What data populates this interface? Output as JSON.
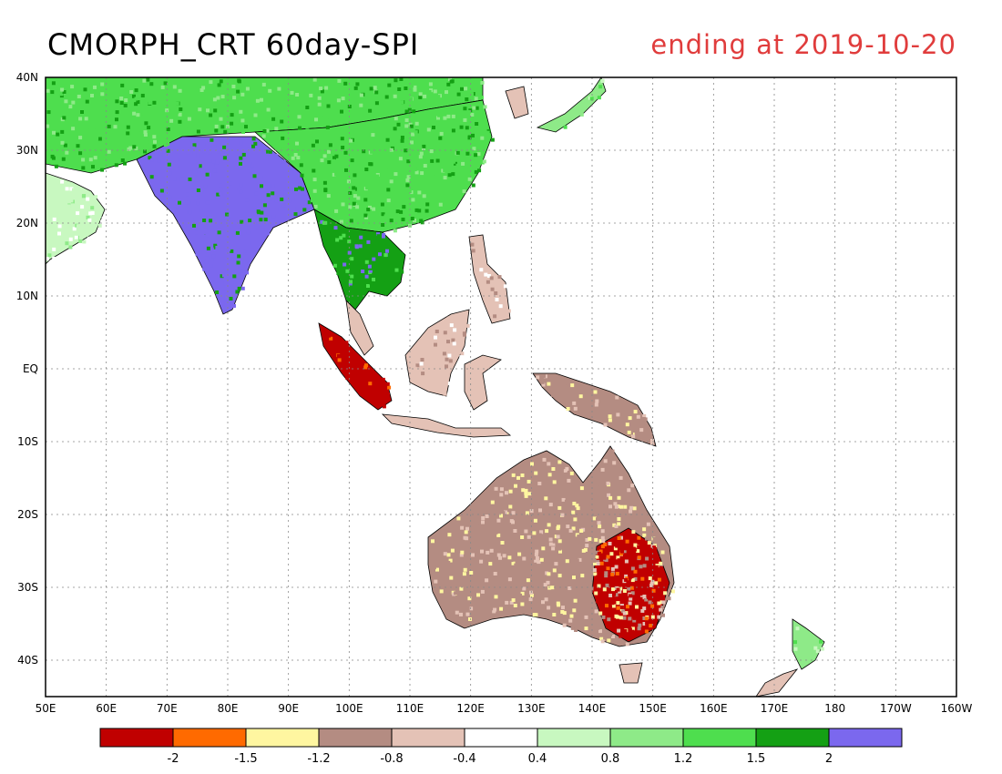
{
  "header": {
    "title": "CMORPH_CRT 60day-SPI",
    "subtitle": "ending at 2019-10-20"
  },
  "colors": {
    "subtitle": "#e03c3c",
    "ocean": "#ffffff",
    "coastline": "#000000",
    "grid": "#888888",
    "wet_extreme": "#7b68ee"
  },
  "map": {
    "lon_labels": [
      "50E",
      "60E",
      "70E",
      "80E",
      "90E",
      "100E",
      "110E",
      "120E",
      "130E",
      "140E",
      "150E",
      "160E",
      "170E",
      "180",
      "170W",
      "160W"
    ],
    "lat_labels": [
      "40N",
      "30N",
      "20N",
      "10N",
      "EQ",
      "10S",
      "20S",
      "30S",
      "40S"
    ],
    "extent": {
      "lon": [
        50,
        200
      ],
      "lat": [
        -45,
        40
      ]
    },
    "regions": [
      {
        "name": "arabia",
        "value_class": 6
      },
      {
        "name": "central-asia",
        "value_class": 8
      },
      {
        "name": "india",
        "value_class": 10
      },
      {
        "name": "china",
        "value_class": 8
      },
      {
        "name": "indochina",
        "value_class": 9
      },
      {
        "name": "sumatra",
        "value_class": 0
      },
      {
        "name": "borneo",
        "value_class": 4
      },
      {
        "name": "new-guinea",
        "value_class": 3
      },
      {
        "name": "australia",
        "value_class": 3
      },
      {
        "name": "eastern-australia",
        "value_class": 0
      },
      {
        "name": "new-zealand",
        "value_class": 7
      },
      {
        "name": "japan",
        "value_class": 7
      },
      {
        "name": "philippines",
        "value_class": 4
      }
    ]
  },
  "legend": {
    "colors": [
      "#c00000",
      "#ff6a00",
      "#fff6a0",
      "#b48c82",
      "#e4c2b6",
      "#ffffff",
      "#c8f8c0",
      "#8eea88",
      "#4ede4e",
      "#14a014",
      "#7b68ee"
    ],
    "labels": [
      "-2",
      "-1.5",
      "-1.2",
      "-0.8",
      "-0.4",
      "0.4",
      "0.8",
      "1.2",
      "1.5",
      "2"
    ]
  }
}
